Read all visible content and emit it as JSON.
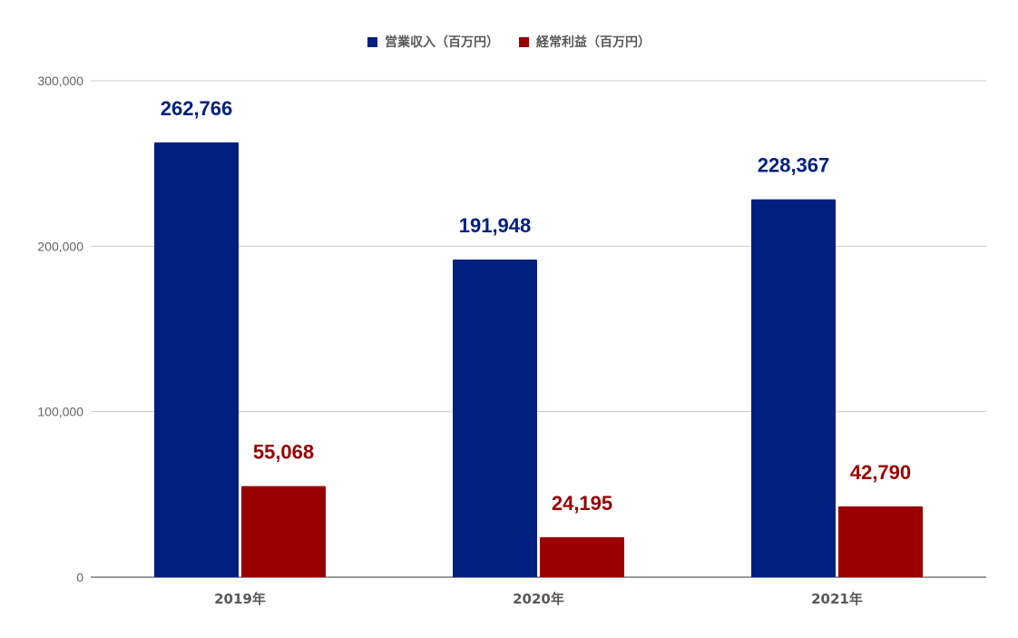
{
  "chart_data": {
    "type": "bar",
    "categories": [
      "2019年",
      "2020年",
      "2021年"
    ],
    "series": [
      {
        "name": "営業収入（百万円）",
        "color": "#002080",
        "values": [
          262766,
          191948,
          228367
        ]
      },
      {
        "name": "経常利益（百万円）",
        "color": "#990000",
        "values": [
          55068,
          24195,
          42790
        ]
      }
    ],
    "data_labels": [
      [
        "262,766",
        "191,948",
        "228,367"
      ],
      [
        "55,068",
        "24,195",
        "42,790"
      ]
    ],
    "ylim": [
      0,
      300000
    ],
    "yticks": [
      0,
      100000,
      200000,
      300000
    ],
    "ytick_labels": [
      "0",
      "100,000",
      "200,000",
      "300,000"
    ],
    "grid": true,
    "legend_position": "top-center"
  }
}
